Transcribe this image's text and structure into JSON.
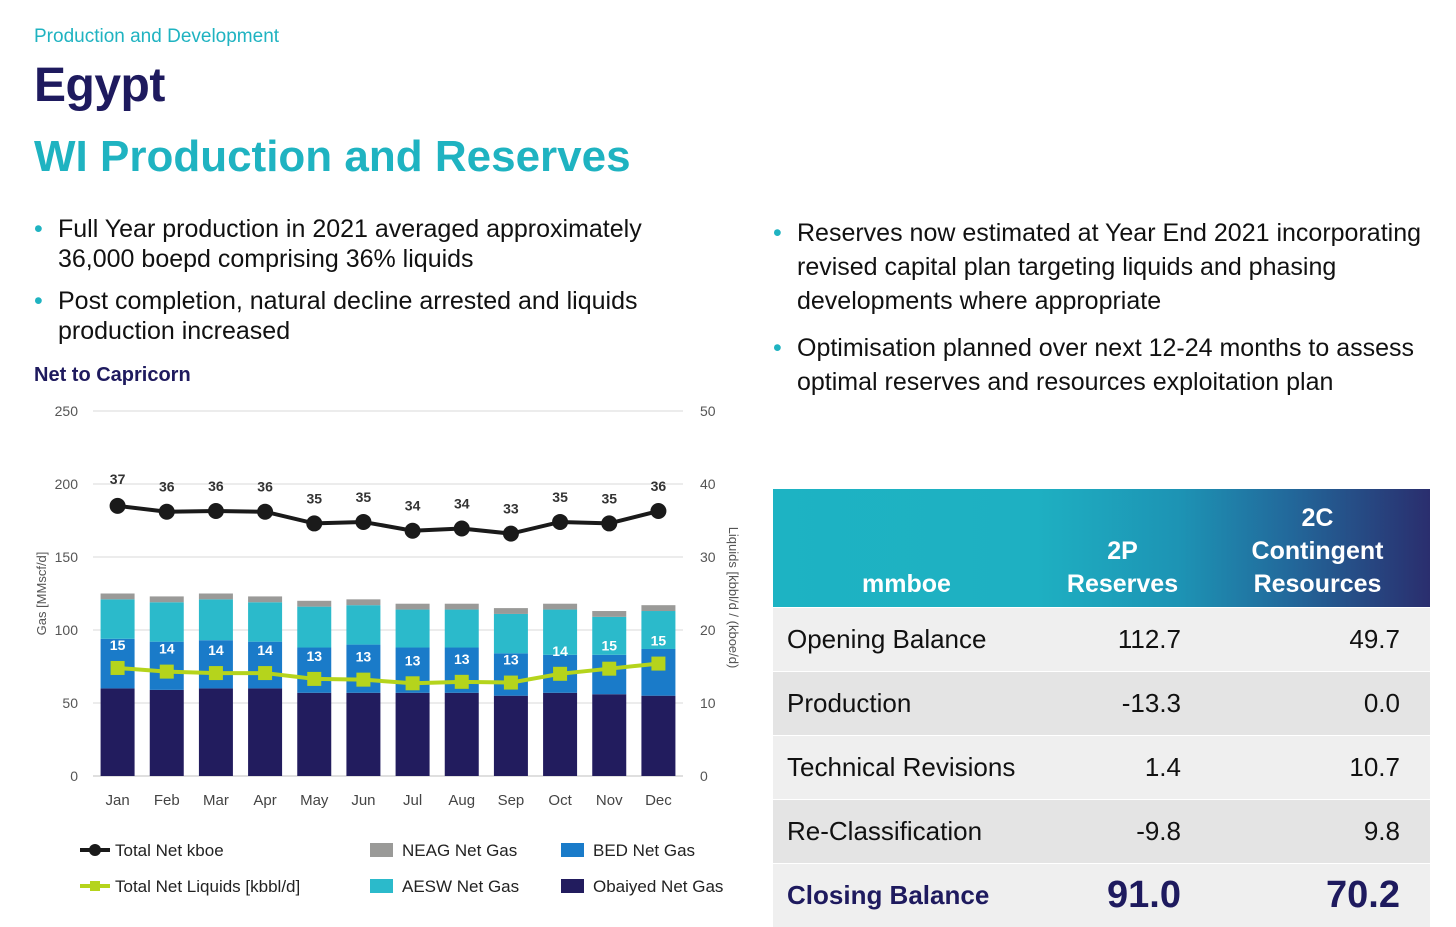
{
  "header": {
    "section": "Production and Development",
    "title": "Egypt",
    "subtitle": "WI Production and Reserves"
  },
  "left_bullets": [
    "Full Year production in 2021 averaged approximately 36,000 boepd comprising 36% liquids",
    "Post completion, natural decline arrested and liquids production increased"
  ],
  "right_bullets": [
    "Reserves now estimated at Year End 2021 incorporating revised capital plan targeting liquids and phasing developments where appropriate",
    "Optimisation planned over next 12-24 months to assess optimal reserves and resources exploitation plan"
  ],
  "chart_title": "Net to Capricorn",
  "colors": {
    "obaiyed": "#221c5e",
    "bed": "#1a7bc9",
    "aesw": "#2bbacb",
    "neag": "#9a9a98",
    "liquids_line": "#b5d41c",
    "kboe_line": "#1a1a1a",
    "table_header_start": "#1db3c3",
    "table_header_end": "#2a2e6e",
    "accent_navy": "#1e1a5e",
    "accent_teal": "#1fb3c1"
  },
  "chart_data": {
    "type": "bar",
    "stacked": true,
    "categories": [
      "Jan",
      "Feb",
      "Mar",
      "Apr",
      "May",
      "Jun",
      "Jul",
      "Aug",
      "Sep",
      "Oct",
      "Nov",
      "Dec"
    ],
    "y_left": {
      "label": "Gas [MMscf/d]",
      "ylim": [
        0,
        250
      ],
      "ticks": [
        "0",
        "50",
        "100",
        "150",
        "200",
        "250"
      ]
    },
    "y_right": {
      "label": "Liquids [kbbl/d / (kboe/d)",
      "ylim": [
        0,
        50
      ],
      "ticks": [
        "0",
        "10",
        "20",
        "30",
        "40",
        "50"
      ]
    },
    "grid": "horizontal",
    "legend_position": "bottom",
    "series": [
      {
        "name": "Obaiyed Net Gas",
        "axis": "left",
        "values": [
          60,
          59,
          60,
          60,
          57,
          57,
          57,
          57,
          55,
          57,
          56,
          55
        ]
      },
      {
        "name": "BED Net Gas",
        "axis": "left",
        "values": [
          34,
          33,
          33,
          32,
          31,
          33,
          31,
          31,
          29,
          26,
          27,
          32
        ]
      },
      {
        "name": "AESW Net Gas",
        "axis": "left",
        "values": [
          27,
          27,
          28,
          27,
          28,
          27,
          26,
          26,
          27,
          31,
          26,
          26
        ]
      },
      {
        "name": "NEAG Net Gas",
        "axis": "left",
        "values": [
          4,
          4,
          4,
          4,
          4,
          4,
          4,
          4,
          4,
          4,
          4,
          4
        ]
      },
      {
        "name": "Total Net kboe",
        "type": "line",
        "axis": "right",
        "values": [
          37.0,
          36.2,
          36.3,
          36.2,
          34.6,
          34.8,
          33.6,
          33.9,
          33.2,
          34.8,
          34.6,
          36.3
        ],
        "labels": [
          "37",
          "36",
          "36",
          "36",
          "35",
          "35",
          "34",
          "34",
          "33",
          "35",
          "35",
          "36"
        ]
      },
      {
        "name": "Total Net Liquids [kbbl/d]",
        "type": "line",
        "axis": "right",
        "values": [
          14.8,
          14.3,
          14.1,
          14.1,
          13.3,
          13.2,
          12.7,
          12.9,
          12.8,
          14.0,
          14.7,
          15.4
        ],
        "labels": [
          "15",
          "14",
          "14",
          "14",
          "13",
          "13",
          "13",
          "13",
          "13",
          "14",
          "15",
          "15"
        ]
      }
    ]
  },
  "reserves_table": {
    "headers": [
      "mmboe",
      "2P Reserves",
      "2C Contingent Resources"
    ],
    "header_lines": [
      [
        "mmboe"
      ],
      [
        "2P",
        "Reserves"
      ],
      [
        "2C",
        "Contingent",
        "Resources"
      ]
    ],
    "rows": [
      {
        "label": "Opening Balance",
        "p2": "112.7",
        "c2": "49.7"
      },
      {
        "label": "Production",
        "p2": "-13.3",
        "c2": "0.0"
      },
      {
        "label": "Technical Revisions",
        "p2": "1.4",
        "c2": "10.7"
      },
      {
        "label": "Re-Classification",
        "p2": "-9.8",
        "c2": "9.8"
      },
      {
        "label": "Closing Balance",
        "p2": "91.0",
        "c2": "70.2"
      }
    ]
  }
}
